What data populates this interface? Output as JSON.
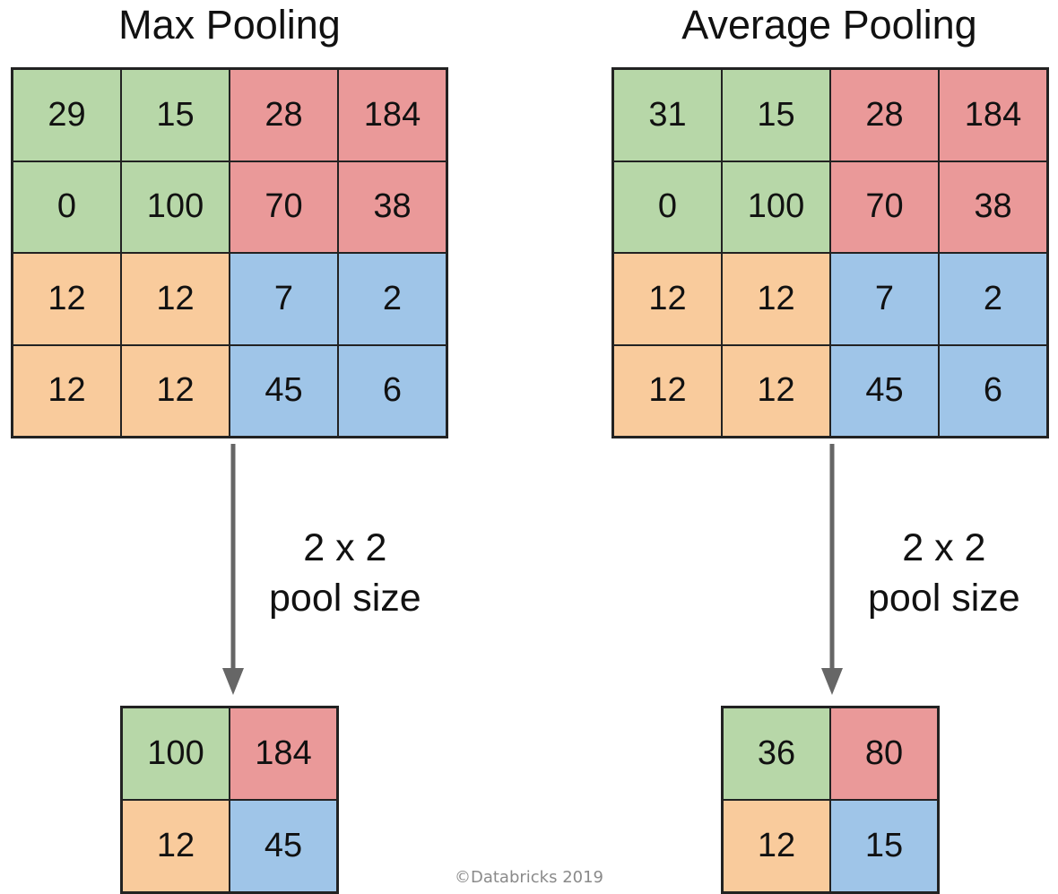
{
  "colors": {
    "green": "#b7d7a8",
    "red": "#ea9999",
    "orange": "#f9cb9c",
    "blue": "#9fc5e8",
    "arrow": "#666666"
  },
  "max_pooling": {
    "title": "Max Pooling",
    "input": [
      [
        "29",
        "15",
        "28",
        "184"
      ],
      [
        "0",
        "100",
        "70",
        "38"
      ],
      [
        "12",
        "12",
        "7",
        "2"
      ],
      [
        "12",
        "12",
        "45",
        "6"
      ]
    ],
    "pool_size_line1": "2 x 2",
    "pool_size_line2": "pool size",
    "output": [
      [
        "100",
        "184"
      ],
      [
        "12",
        "45"
      ]
    ]
  },
  "average_pooling": {
    "title": "Average Pooling",
    "input": [
      [
        "31",
        "15",
        "28",
        "184"
      ],
      [
        "0",
        "100",
        "70",
        "38"
      ],
      [
        "12",
        "12",
        "7",
        "2"
      ],
      [
        "12",
        "12",
        "45",
        "6"
      ]
    ],
    "pool_size_line1": "2 x 2",
    "pool_size_line2": "pool size",
    "output": [
      [
        "36",
        "80"
      ],
      [
        "12",
        "15"
      ]
    ]
  },
  "footer": "©Databricks 2019"
}
